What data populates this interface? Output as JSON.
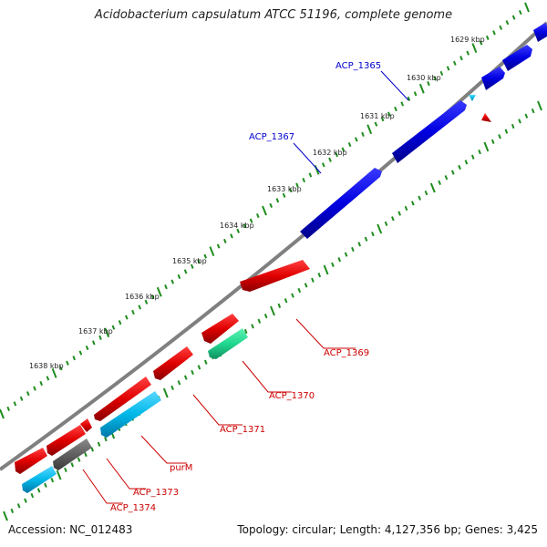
{
  "title": "Acidobacterium capsulatum ATCC 51196, complete genome",
  "footer": {
    "accession": "Accession: NC_012483",
    "summary": "Topology: circular; Length: 4,127,356 bp; Genes: 3,425"
  },
  "colors": {
    "background": "#ffffff",
    "backbone": "#808080",
    "tick": "#1e8c1e",
    "forward_gene": "#0000e0",
    "reverse_gene": "#e00000",
    "trna": "#00b8e8",
    "rrna": "#20d890",
    "pseudo": "#606060",
    "forward_label": "#0000cc",
    "reverse_label": "#cc0000"
  },
  "scale_ticks": [
    "1629 kbp",
    "1630 kbp",
    "1631 kbp",
    "1632 kbp",
    "1633 kbp",
    "1634 kbp",
    "1635 kbp",
    "1636 kbp",
    "1637 kbp",
    "1638 kbp"
  ],
  "gene_labels": {
    "forward": [
      "ACP_1365",
      "ACP_1367"
    ],
    "reverse": [
      "ACP_1369",
      "ACP_1370",
      "ACP_1371",
      "purM",
      "ACP_1373",
      "ACP_1374"
    ]
  }
}
